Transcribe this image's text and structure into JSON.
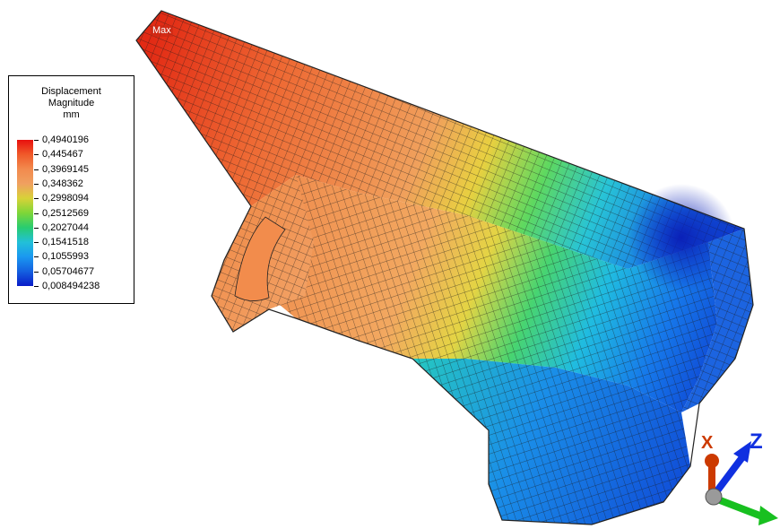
{
  "legend": {
    "title_line1": "Displacement",
    "title_line2": "Magnitude",
    "unit": "mm",
    "values": [
      "0,4940196",
      "0,445467",
      "0,3969145",
      "0,348362",
      "0,2998094",
      "0,2512569",
      "0,2027044",
      "0,1541518",
      "0,1055993",
      "0,05704677",
      "0,008494238"
    ],
    "colors": [
      "#e8100e",
      "#f05a2a",
      "#f28a4e",
      "#f0a060",
      "#d8d238",
      "#7ed638",
      "#28cc70",
      "#22c0d8",
      "#1a98f0",
      "#1460e0",
      "#0a1cc8"
    ]
  },
  "model": {
    "max_label": "Max"
  },
  "triad": {
    "x_label": "X",
    "z_label": "Z",
    "x_color": "#cc3a00",
    "y_color": "#18c020",
    "z_color": "#1030e0"
  }
}
